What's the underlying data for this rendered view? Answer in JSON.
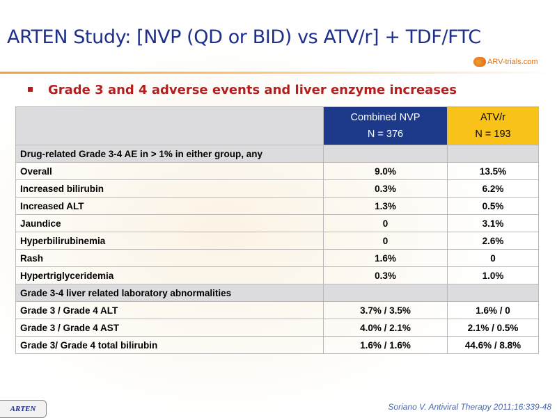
{
  "slide": {
    "title": "ARTEN Study: [NVP (QD or BID) vs ATV/r] + TDF/FTC",
    "logo_text": "ARV-trials.com",
    "bullet": "Grade 3 and 4 adverse events and liver enzyme increases",
    "footer_tag": "ARTEN",
    "citation": "Soriano V. Antiviral Therapy 2011;16:339-48"
  },
  "table": {
    "header": {
      "corner": "",
      "nvp_name": "Combined NVP",
      "nvp_n": "N = 376",
      "atv_name": "ATV/r",
      "atv_n": "N = 193"
    },
    "rows": [
      {
        "label": "Drug-related Grade 3-4 AE in > 1% in either group, any",
        "nvp": "",
        "atv": ""
      },
      {
        "label": "Overall",
        "nvp": "9.0%",
        "atv": "13.5%"
      },
      {
        "label": "Increased bilirubin",
        "nvp": "0.3%",
        "atv": "6.2%"
      },
      {
        "label": "Increased ALT",
        "nvp": "1.3%",
        "atv": "0.5%"
      },
      {
        "label": "Jaundice",
        "nvp": "0",
        "atv": "3.1%"
      },
      {
        "label": "Hyperbilirubinemia",
        "nvp": "0",
        "atv": "2.6%"
      },
      {
        "label": "Rash",
        "nvp": "1.6%",
        "atv": "0"
      },
      {
        "label": "Hypertriglyceridemia",
        "nvp": "0.3%",
        "atv": "1.0%"
      },
      {
        "label": "Grade 3-4 liver related laboratory abnormalities",
        "nvp": "",
        "atv": ""
      },
      {
        "label": "Grade 3 / Grade 4 ALT",
        "nvp": "3.7% / 3.5%",
        "atv": "1.6% / 0"
      },
      {
        "label": "Grade 3 / Grade 4 AST",
        "nvp": "4.0% / 2.1%",
        "atv": "2.1% / 0.5%"
      },
      {
        "label": "Grade 3/ Grade 4 total bilirubin",
        "nvp": "1.6% / 1.6%",
        "atv": "44.6% / 8.8%"
      }
    ]
  }
}
